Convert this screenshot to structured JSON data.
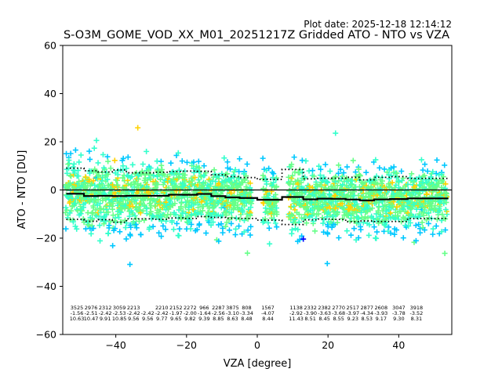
{
  "chart_data": {
    "type": "scatter",
    "title": "S-O3M_GOME_VOD_XX_M01_20251217Z Gridded ATO - NTO vs VZA",
    "plot_date": "Plot date: 2025-12-18 12:14:12",
    "xlabel": "VZA [degree]",
    "ylabel": "ATO - NTO [DU]",
    "xlim": [
      -55,
      55
    ],
    "ylim": [
      -60,
      60
    ],
    "xticks": [
      -40,
      -20,
      0,
      20,
      40
    ],
    "yticks": [
      -60,
      -40,
      -20,
      0,
      20,
      40,
      60
    ],
    "marker": "+",
    "density_colors": [
      "#0000ff",
      "#00c8ff",
      "#33ffcc",
      "#66ff88",
      "#ffd200",
      "#ff9900"
    ],
    "mean_line_color": "#000000",
    "zero_line": 0,
    "bins": [
      {
        "vza": -51,
        "count": "3525",
        "mean": -1.56,
        "std": 10.63
      },
      {
        "vza": -47,
        "count": "2976",
        "mean": -2.51,
        "std": 10.47
      },
      {
        "vza": -43,
        "count": "2312",
        "mean": -2.42,
        "std": 9.91
      },
      {
        "vza": -39,
        "count": "3059",
        "mean": -2.53,
        "std": 10.85
      },
      {
        "vza": -35,
        "count": "2213",
        "mean": -2.42,
        "std": 9.56
      },
      {
        "vza": -31,
        "count": "",
        "mean": -2.42,
        "std": 9.56
      },
      {
        "vza": -27,
        "count": "2210",
        "mean": -2.42,
        "std": 9.77
      },
      {
        "vza": -23,
        "count": "2152",
        "mean": -1.97,
        "std": 9.65
      },
      {
        "vza": -19,
        "count": "2272",
        "mean": -2.0,
        "std": 9.82
      },
      {
        "vza": -15,
        "count": "966",
        "mean": -1.64,
        "std": 9.39
      },
      {
        "vza": -11,
        "count": "2287",
        "mean": -2.56,
        "std": 8.85
      },
      {
        "vza": -7,
        "count": "3875",
        "mean": -3.1,
        "std": 8.63
      },
      {
        "vza": -3,
        "count": "808",
        "mean": -3.34,
        "std": 8.48
      },
      {
        "vza": 3,
        "count": "1567",
        "mean": -4.07,
        "std": 8.44
      },
      {
        "vza": 11,
        "count": "1138",
        "mean": -2.92,
        "std": 11.43
      },
      {
        "vza": 15,
        "count": "2332",
        "mean": -3.9,
        "std": 8.51
      },
      {
        "vza": 19,
        "count": "2382",
        "mean": -3.63,
        "std": 8.45
      },
      {
        "vza": 23,
        "count": "2770",
        "mean": -3.68,
        "std": 8.55
      },
      {
        "vza": 27,
        "count": "2517",
        "mean": -3.97,
        "std": 9.23
      },
      {
        "vza": 31,
        "count": "2877",
        "mean": -4.34,
        "std": 8.53
      },
      {
        "vza": 35,
        "count": "2608",
        "mean": -3.93,
        "std": 9.17
      },
      {
        "vza": 40,
        "count": "3047",
        "mean": -3.78,
        "std": 9.3
      },
      {
        "vza": 45,
        "count": "3918",
        "mean": -3.52,
        "std": 8.31
      }
    ]
  }
}
